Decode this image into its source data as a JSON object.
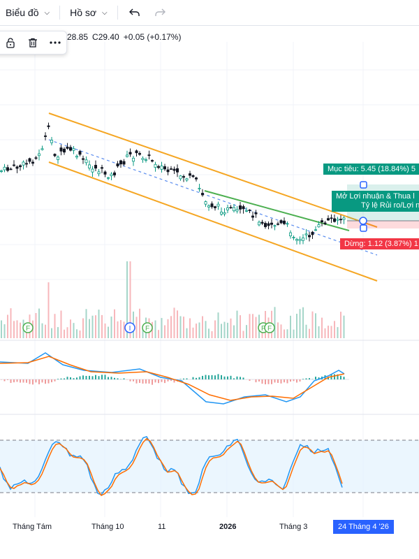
{
  "toolbar": {
    "chart_menu": "Biểu đồ",
    "profile_menu": "Hồ sơ"
  },
  "legend": {
    "low": "28.85",
    "close": "C29.40",
    "change": "+0.05 (+0.17%)"
  },
  "position": {
    "target_label": "Mục tiêu: 5.45 (18.84%) 5",
    "pnl_line1": "Mở Lợi nhuận & Thua l",
    "pnl_line2": "Tỷ lệ Rủi ro/Lợi n",
    "stop_label": "Dừng: 1.12 (3.87%) 1"
  },
  "events": {
    "earnings_marker": "E",
    "dividend_marker": "F",
    "info_marker": "I"
  },
  "time_axis": {
    "labels": [
      "Tháng Tám",
      "Tháng 10",
      "11",
      "2026",
      "Tháng 3"
    ],
    "crosshair_date": "24 Tháng 4 '26"
  },
  "colors": {
    "up": "#089981",
    "down": "#131722",
    "channel": "#f5a623",
    "trend_green": "#4caf50",
    "macd_line": "#2196f3",
    "signal_line": "#ff6d00",
    "stoch_band": "#e3f2fd",
    "accent": "#2962ff"
  },
  "icons": {
    "chevron": "chevron-down-icon",
    "undo": "undo-icon",
    "redo": "redo-icon",
    "lock": "lock-icon",
    "trash": "trash-icon",
    "more": "more-icon"
  }
}
